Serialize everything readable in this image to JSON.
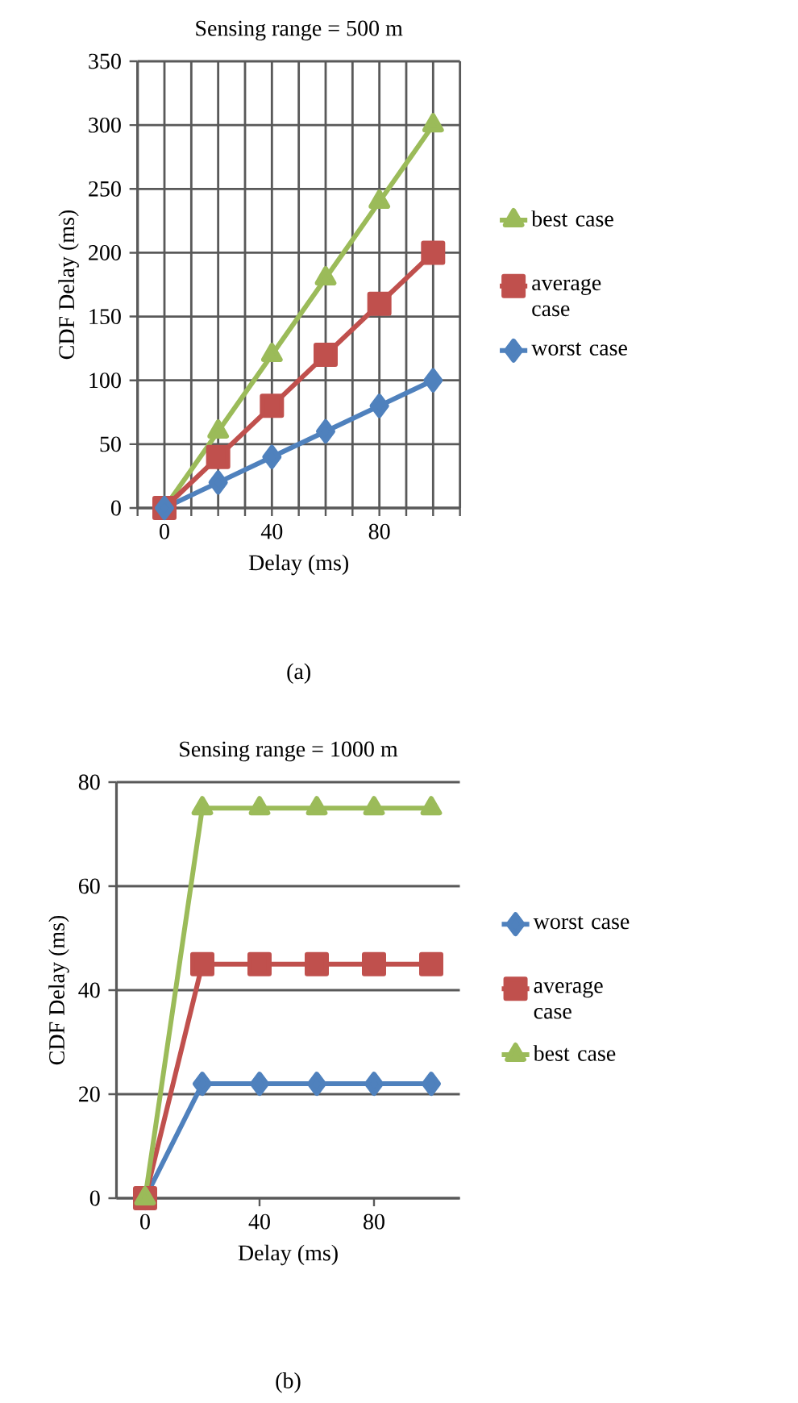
{
  "chart_data": [
    {
      "type": "line",
      "title": "Sensing range = 500 m",
      "xlabel": "Delay (ms)",
      "ylabel": "CDF Delay (ms)",
      "x": [
        0,
        20,
        40,
        60,
        80,
        100
      ],
      "series": [
        {
          "name": "best case",
          "color": "#9bbb59",
          "marker": "triangle",
          "values": [
            0,
            60,
            120,
            180,
            240,
            300
          ]
        },
        {
          "name": "average case",
          "color": "#c0504d",
          "marker": "square",
          "values": [
            0,
            40,
            80,
            120,
            160,
            200
          ]
        },
        {
          "name": "worst case",
          "color": "#4f81bd",
          "marker": "diamond",
          "values": [
            0,
            20,
            40,
            60,
            80,
            100
          ]
        }
      ],
      "xlim": [
        -10,
        110
      ],
      "ylim": [
        0,
        350
      ],
      "xticks": [
        {
          "value": -10,
          "label": null
        },
        0,
        {
          "value": 10,
          "label": null
        },
        {
          "value": 20,
          "label": null
        },
        {
          "value": 30,
          "label": null
        },
        40,
        {
          "value": 50,
          "label": null
        },
        {
          "value": 60,
          "label": null
        },
        {
          "value": 70,
          "label": null
        },
        80,
        {
          "value": 90,
          "label": null
        },
        {
          "value": 100,
          "label": null
        },
        {
          "value": 110,
          "label": null
        }
      ],
      "yticks": [
        0,
        50,
        100,
        150,
        200,
        250,
        300,
        350
      ],
      "grid": true,
      "legend": "right",
      "line_style": "solid",
      "annotations": [
        "(a)"
      ]
    },
    {
      "type": "line",
      "title": "Sensing range = 1000 m",
      "xlabel": "Delay (ms)",
      "ylabel": "CDF Delay (ms)",
      "x": [
        0,
        20,
        40,
        60,
        80,
        100
      ],
      "series": [
        {
          "name": "worst case",
          "color": "#4f81bd",
          "marker": "diamond",
          "values": [
            0,
            22,
            22,
            22,
            22,
            22
          ]
        },
        {
          "name": "average case",
          "color": "#c0504d",
          "marker": "square",
          "values": [
            0,
            45,
            45,
            45,
            45,
            45
          ]
        },
        {
          "name": "best case",
          "color": "#9bbb59",
          "marker": "triangle",
          "values": [
            0,
            75,
            75,
            75,
            75,
            75
          ]
        }
      ],
      "xlim": [
        -10,
        110
      ],
      "ylim": [
        0,
        80
      ],
      "xticks": [
        0,
        40,
        80
      ],
      "yticks": [
        0,
        20,
        40,
        60,
        80
      ],
      "grid": "y",
      "legend": "right",
      "line_style": "solid",
      "annotations": [
        "(b)"
      ]
    }
  ]
}
